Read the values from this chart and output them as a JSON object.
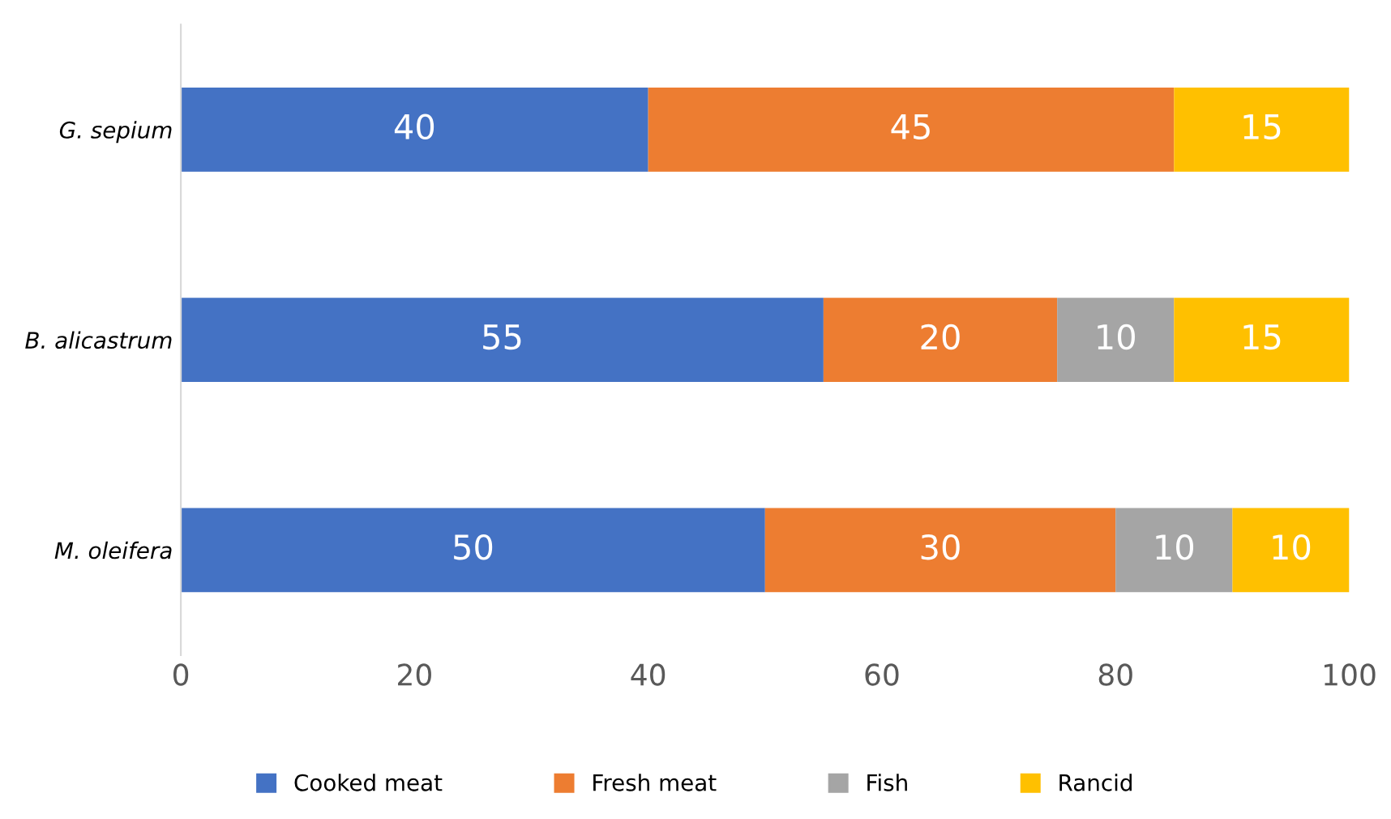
{
  "chart_data": {
    "type": "bar",
    "orientation": "horizontal",
    "stacked": true,
    "categories": [
      "G. sepium",
      "B. alicastrum",
      "M. oleifera"
    ],
    "series": [
      {
        "name": "Cooked meat",
        "color": "#4472c4",
        "values": [
          40,
          55,
          50
        ]
      },
      {
        "name": "Fresh meat",
        "color": "#ed7d31",
        "values": [
          45,
          20,
          30
        ]
      },
      {
        "name": "Fish",
        "color": "#a5a5a5",
        "values": [
          null,
          10,
          10
        ]
      },
      {
        "name": "Rancid",
        "color": "#ffc000",
        "values": [
          15,
          15,
          10
        ]
      }
    ],
    "xlim": [
      0,
      100
    ],
    "xticks": [
      0,
      20,
      40,
      60,
      80,
      100
    ],
    "data_labels": true,
    "grid": false,
    "legend": "bottom"
  }
}
